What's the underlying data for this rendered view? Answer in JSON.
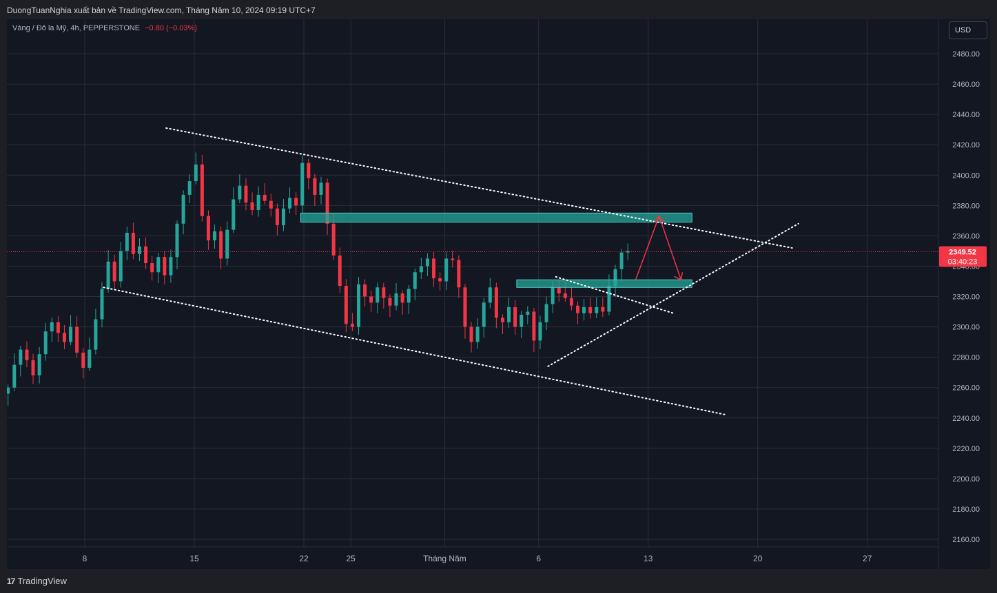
{
  "header": {
    "publisher_text": "DuongTuanNghia xuất bản về TradingView.com, Tháng Năm 10, 2024 09:19 UTC+7"
  },
  "symbol": {
    "name": "Vàng / Đô la Mỹ, 4h, PEPPERSTONE",
    "change": "−0.80 (−0.03%)"
  },
  "currency_button": "USD",
  "footer": {
    "logo_text": "TradingView",
    "logo_mark": "17"
  },
  "colors": {
    "background": "#131722",
    "up": "#26a69a",
    "down": "#f23645",
    "zone": "#26a69a",
    "grid": "#2a2e39",
    "arrow": "#f23645"
  },
  "chart_data": {
    "type": "candlestick",
    "ylim": [
      2150,
      2490
    ],
    "y_ticks": [
      "2160.00",
      "2180.00",
      "2200.00",
      "2220.00",
      "2240.00",
      "2260.00",
      "2280.00",
      "2300.00",
      "2320.00",
      "2340.00",
      "2360.00",
      "2380.00",
      "2400.00",
      "2420.00",
      "2440.00",
      "2460.00",
      "2480.00"
    ],
    "x_ticks": [
      {
        "label": "8",
        "day": 8
      },
      {
        "label": "15",
        "day": 15
      },
      {
        "label": "22",
        "day": 22
      },
      {
        "label": "25",
        "day": 25
      },
      {
        "label": "Tháng Năm",
        "day": 31
      },
      {
        "label": "6",
        "day": 37
      },
      {
        "label": "13",
        "day": 44
      },
      {
        "label": "20",
        "day": 51
      },
      {
        "label": "27",
        "day": 58
      }
    ],
    "last_price": {
      "label": "2349.52",
      "countdown": "03:40:23",
      "value": 2349.52
    },
    "candles_path": [
      [
        3.1,
        2260
      ],
      [
        3.5,
        2275
      ],
      [
        3.9,
        2285
      ],
      [
        4.3,
        2278
      ],
      [
        4.7,
        2268
      ],
      [
        5.1,
        2282
      ],
      [
        5.5,
        2297
      ],
      [
        5.9,
        2303
      ],
      [
        6.3,
        2296
      ],
      [
        6.7,
        2290
      ],
      [
        7.1,
        2300
      ],
      [
        7.5,
        2283
      ],
      [
        7.9,
        2273
      ],
      [
        8.3,
        2285
      ],
      [
        8.7,
        2305
      ],
      [
        9.1,
        2325
      ],
      [
        9.5,
        2343
      ],
      [
        9.9,
        2330
      ],
      [
        10.3,
        2350
      ],
      [
        10.7,
        2362
      ],
      [
        11.1,
        2348
      ],
      [
        11.5,
        2353
      ],
      [
        11.9,
        2342
      ],
      [
        12.3,
        2336
      ],
      [
        12.7,
        2346
      ],
      [
        13.1,
        2334
      ],
      [
        13.5,
        2346
      ],
      [
        13.9,
        2368
      ],
      [
        14.3,
        2387
      ],
      [
        14.7,
        2396
      ],
      [
        15.1,
        2407
      ],
      [
        15.5,
        2373
      ],
      [
        15.9,
        2357
      ],
      [
        16.3,
        2363
      ],
      [
        16.7,
        2345
      ],
      [
        17.1,
        2364
      ],
      [
        17.5,
        2384
      ],
      [
        17.9,
        2393
      ],
      [
        18.3,
        2382
      ],
      [
        18.7,
        2377
      ],
      [
        19.1,
        2387
      ],
      [
        19.5,
        2383
      ],
      [
        19.9,
        2378
      ],
      [
        20.3,
        2367
      ],
      [
        20.7,
        2378
      ],
      [
        21.1,
        2385
      ],
      [
        21.5,
        2380
      ],
      [
        21.9,
        2408
      ],
      [
        22.3,
        2398
      ],
      [
        22.7,
        2387
      ],
      [
        23.1,
        2395
      ],
      [
        23.5,
        2368
      ],
      [
        23.9,
        2347
      ],
      [
        24.3,
        2327
      ],
      [
        24.7,
        2302
      ],
      [
        25.1,
        2300
      ],
      [
        25.5,
        2328
      ],
      [
        25.9,
        2320
      ],
      [
        26.3,
        2316
      ],
      [
        26.7,
        2326
      ],
      [
        27.1,
        2319
      ],
      [
        27.5,
        2314
      ],
      [
        27.9,
        2322
      ],
      [
        28.3,
        2316
      ],
      [
        28.7,
        2325
      ],
      [
        29.1,
        2336
      ],
      [
        29.5,
        2340
      ],
      [
        29.9,
        2345
      ],
      [
        30.3,
        2332
      ],
      [
        30.7,
        2330
      ],
      [
        31.1,
        2345
      ],
      [
        31.5,
        2344
      ],
      [
        31.9,
        2326
      ],
      [
        32.3,
        2300
      ],
      [
        32.7,
        2290
      ],
      [
        33.1,
        2300
      ],
      [
        33.5,
        2316
      ],
      [
        33.9,
        2326
      ],
      [
        34.3,
        2306
      ],
      [
        34.7,
        2303
      ],
      [
        35.1,
        2313
      ],
      [
        35.5,
        2300
      ],
      [
        35.9,
        2308
      ],
      [
        36.3,
        2310
      ],
      [
        36.7,
        2291
      ],
      [
        37.1,
        2303
      ],
      [
        37.5,
        2315
      ],
      [
        37.9,
        2326
      ],
      [
        38.3,
        2322
      ],
      [
        38.7,
        2319
      ],
      [
        39.1,
        2314
      ],
      [
        39.5,
        2309
      ],
      [
        39.9,
        2313
      ],
      [
        40.3,
        2309
      ],
      [
        40.7,
        2313
      ],
      [
        41.1,
        2310
      ],
      [
        41.5,
        2327
      ],
      [
        41.9,
        2338
      ],
      [
        42.3,
        2349
      ],
      [
        42.7,
        2350
      ]
    ],
    "trendlines": [
      {
        "name": "upper-channel",
        "from": [
          13.2,
          2431
        ],
        "to": [
          53.2,
          2352
        ]
      },
      {
        "name": "lower-channel",
        "from": [
          9.2,
          2326
        ],
        "to": [
          49.0,
          2242
        ]
      },
      {
        "name": "rising-support",
        "from": [
          37.6,
          2274
        ],
        "to": [
          53.6,
          2368
        ]
      },
      {
        "name": "small-descending",
        "from": [
          38.1,
          2333
        ],
        "to": [
          45.6,
          2309
        ]
      }
    ],
    "zones": [
      {
        "name": "resistance-zone",
        "from_day": 21.8,
        "to_day": 46.8,
        "low": 2369,
        "high": 2375
      },
      {
        "name": "support-zone",
        "from_day": 35.6,
        "to_day": 46.8,
        "low": 2326,
        "high": 2331
      }
    ],
    "arrows": [
      {
        "from": [
          43.2,
          2331
        ],
        "peak": [
          44.7,
          2373
        ],
        "to": [
          46.1,
          2331
        ]
      }
    ]
  }
}
